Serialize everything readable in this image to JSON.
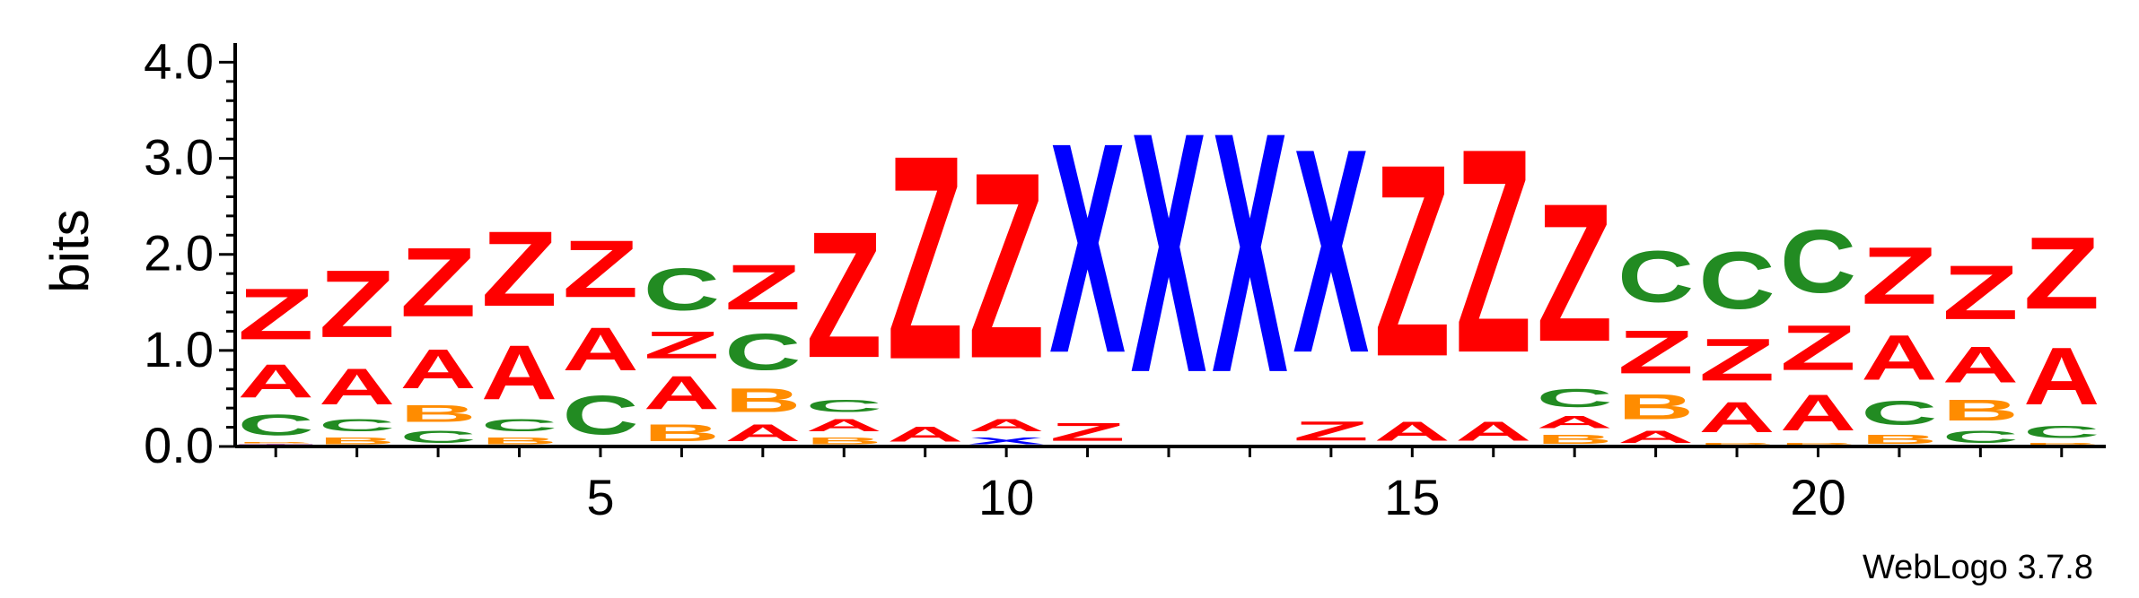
{
  "chart_data": {
    "type": "sequence-logo",
    "ylabel": "bits",
    "credit": "WebLogo 3.7.8",
    "ylim": [
      0,
      4.2
    ],
    "yticks": [
      {
        "value": 0,
        "label": "0.0"
      },
      {
        "value": 1,
        "label": "1.0"
      },
      {
        "value": 2,
        "label": "2.0"
      },
      {
        "value": 3,
        "label": "3.0"
      },
      {
        "value": 4,
        "label": "4.0"
      }
    ],
    "xticks": [
      {
        "position": 5,
        "label": "5"
      },
      {
        "position": 10,
        "label": "10"
      },
      {
        "position": 15,
        "label": "15"
      },
      {
        "position": 20,
        "label": "20"
      }
    ],
    "colors": {
      "Z": "#ff0000",
      "A": "#ff0000",
      "X": "#0000ff",
      "C": "#228b22",
      "B": "#ff8c00",
      "T": "#800080"
    },
    "positions": [
      {
        "pos": 1,
        "stack": [
          [
            "T",
            0.03
          ],
          [
            "B",
            0.02
          ],
          [
            "C",
            0.35
          ],
          [
            "A",
            0.55
          ],
          [
            "Z",
            0.85
          ]
        ]
      },
      {
        "pos": 2,
        "stack": [
          [
            "B",
            0.12
          ],
          [
            "C",
            0.2
          ],
          [
            "A",
            0.6
          ],
          [
            "Z",
            1.12
          ]
        ]
      },
      {
        "pos": 3,
        "stack": [
          [
            "C",
            0.2
          ],
          [
            "B",
            0.28
          ],
          [
            "A",
            0.65
          ],
          [
            "Z",
            1.15
          ]
        ]
      },
      {
        "pos": 4,
        "stack": [
          [
            "B",
            0.12
          ],
          [
            "C",
            0.2
          ],
          [
            "A",
            0.9
          ],
          [
            "Z",
            1.25
          ]
        ]
      },
      {
        "pos": 5,
        "stack": [
          [
            "C",
            0.65
          ],
          [
            "A",
            0.72
          ],
          [
            "Z",
            0.95
          ]
        ]
      },
      {
        "pos": 6,
        "stack": [
          [
            "B",
            0.28
          ],
          [
            "A",
            0.55
          ],
          [
            "Z",
            0.45
          ],
          [
            "C",
            0.7
          ]
        ]
      },
      {
        "pos": 7,
        "stack": [
          [
            "A",
            0.28
          ],
          [
            "B",
            0.4
          ],
          [
            "C",
            0.6
          ],
          [
            "Z",
            0.75
          ]
        ]
      },
      {
        "pos": 8,
        "stack": [
          [
            "B",
            0.12
          ],
          [
            "A",
            0.2
          ],
          [
            "C",
            0.2
          ],
          [
            "Z",
            2.1
          ]
        ]
      },
      {
        "pos": 9,
        "stack": [
          [
            "A",
            0.25
          ],
          [
            "Z",
            3.4
          ]
        ]
      },
      {
        "pos": 10,
        "stack": [
          [
            "X",
            0.12
          ],
          [
            "A",
            0.2
          ],
          [
            "Z",
            3.1
          ]
        ]
      },
      {
        "pos": 11,
        "stack": [
          [
            "Z",
            0.3
          ],
          [
            "X",
            3.5
          ]
        ]
      },
      {
        "pos": 12,
        "stack": [
          [
            "X",
            4.0
          ]
        ]
      },
      {
        "pos": 13,
        "stack": [
          [
            "X",
            4.0
          ]
        ]
      },
      {
        "pos": 14,
        "stack": [
          [
            "Z",
            0.32
          ],
          [
            "X",
            3.4
          ]
        ]
      },
      {
        "pos": 15,
        "stack": [
          [
            "A",
            0.32
          ],
          [
            "Z",
            3.2
          ]
        ]
      },
      {
        "pos": 16,
        "stack": [
          [
            "A",
            0.32
          ],
          [
            "Z",
            3.4
          ]
        ]
      },
      {
        "pos": 17,
        "stack": [
          [
            "B",
            0.15
          ],
          [
            "A",
            0.2
          ],
          [
            "C",
            0.3
          ],
          [
            "Z",
            2.3
          ]
        ]
      },
      {
        "pos": 18,
        "stack": [
          [
            "A",
            0.2
          ],
          [
            "B",
            0.42
          ],
          [
            "Z",
            0.72
          ],
          [
            "C",
            0.85
          ]
        ]
      },
      {
        "pos": 19,
        "stack": [
          [
            "B",
            0.05
          ],
          [
            "A",
            0.5
          ],
          [
            "Z",
            0.7
          ],
          [
            "C",
            0.95
          ]
        ]
      },
      {
        "pos": 20,
        "stack": [
          [
            "B",
            0.05
          ],
          [
            "A",
            0.6
          ],
          [
            "Z",
            0.75
          ],
          [
            "C",
            1.05
          ]
        ]
      },
      {
        "pos": 21,
        "stack": [
          [
            "B",
            0.15
          ],
          [
            "C",
            0.4
          ],
          [
            "A",
            0.75
          ],
          [
            "Z",
            0.95
          ]
        ]
      },
      {
        "pos": 22,
        "stack": [
          [
            "C",
            0.2
          ],
          [
            "B",
            0.35
          ],
          [
            "A",
            0.6
          ],
          [
            "Z",
            0.9
          ]
        ]
      },
      {
        "pos": 23,
        "stack": [
          [
            "B",
            0.05
          ],
          [
            "C",
            0.2
          ],
          [
            "A",
            0.95
          ],
          [
            "Z",
            1.2
          ]
        ]
      }
    ]
  }
}
